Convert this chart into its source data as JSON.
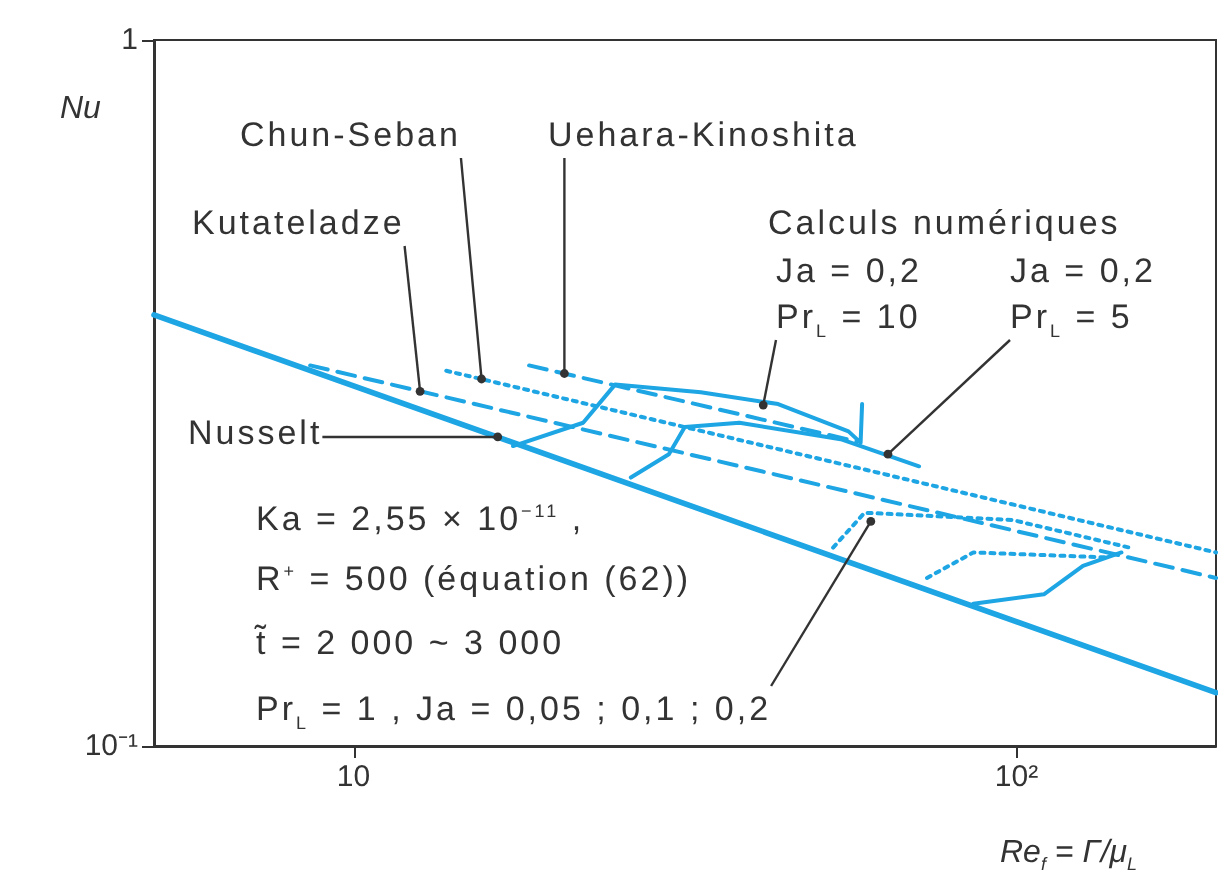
{
  "chart_data": {
    "type": "line",
    "xlabel": "Re$_{f}$ = Γ/μ$_{L}$",
    "ylabel": "Nu",
    "log": "xy",
    "grid": false,
    "marker": "none",
    "xlim": [
      5,
      200
    ],
    "xticks": [
      {
        "value": 10,
        "label": "10"
      },
      {
        "value": 100,
        "label": "10²"
      }
    ],
    "ylim": [
      0.1,
      1
    ],
    "yticks": [
      {
        "value": 0.1,
        "label": "10⁻¹"
      },
      1
    ],
    "series": [
      {
        "color": "#1ea5e4",
        "line_style": "solid",
        "x": [
          5,
          200
        ],
        "values": [
          0.408,
          0.119
        ]
      },
      {
        "color": "#1ea5e4",
        "line_style": "dashed",
        "x": [
          8.6,
          200
        ],
        "values": [
          0.346,
          0.173
        ]
      },
      {
        "color": "#1ea5e4",
        "line_style": "dotted",
        "x": [
          13.8,
          200
        ],
        "values": [
          0.34,
          0.188
        ]
      },
      {
        "color": "#1ea5e4",
        "line_style": "dashed",
        "x": [
          18.4,
          57.4
        ],
        "values": [
          0.346,
          0.27
        ]
      },
      {
        "color": "#1ea5e4",
        "line_style": "solid",
        "x": [
          17.4,
          22.2,
          24.8,
          33.4,
          43.7,
          55.8,
          58.2,
          58.5
        ],
        "values": [
          0.266,
          0.287,
          0.325,
          0.317,
          0.305,
          0.279,
          0.269,
          0.305
        ]
      },
      {
        "color": "#1ea5e4",
        "line_style": "solid",
        "x": [
          26.2,
          29.9,
          31.6,
          38.2,
          54.3,
          71.3
        ],
        "values": [
          0.24,
          0.259,
          0.283,
          0.287,
          0.272,
          0.249
        ]
      },
      {
        "color": "#1ea5e4",
        "line_style": "dotted",
        "x": [
          52.9,
          59,
          98.6,
          148
        ],
        "values": [
          0.191,
          0.214,
          0.209,
          0.191
        ]
      },
      {
        "color": "#1ea5e4",
        "line_style": "dotted",
        "x": [
          73.3,
          86.1,
          136
        ],
        "values": [
          0.173,
          0.188,
          0.185
        ]
      },
      {
        "color": "#1ea5e4",
        "line_style": "solid",
        "x": [
          86.1,
          110,
          126,
          144
        ],
        "values": [
          0.159,
          0.164,
          0.18,
          0.188
        ]
      }
    ],
    "annotations": [
      {
        "text": "Kutateladze",
        "x": 12.6,
        "y": 0.318
      },
      {
        "text": "Chun-Seban",
        "x": 15.6,
        "y": 0.331
      },
      {
        "text": "Uehara-Kinoshita",
        "x": 20.8,
        "y": 0.337
      },
      {
        "text": "Nusselt",
        "x": 16.5,
        "y": 0.274
      },
      "Calculs numériques",
      {
        "text": "Ja = 0,2\nPr$_{L}$ = 10",
        "x": 41.5,
        "y": 0.304
      },
      {
        "text": "Ja = 0,2\nPr$_{L}$ = 5",
        "x": 64,
        "y": 0.259
      },
      "Ka = 2,55 × 10$^{−11}$ ,",
      "R$^{+}$ = 500 (équation (62))",
      "t̃ = 2 000 ~ 3 000",
      {
        "text": "Pr$_{L}$ = 1 , Ja = 0,05 ; 0,1 ; 0,2",
        "x": 60.3,
        "y": 0.208
      }
    ]
  }
}
